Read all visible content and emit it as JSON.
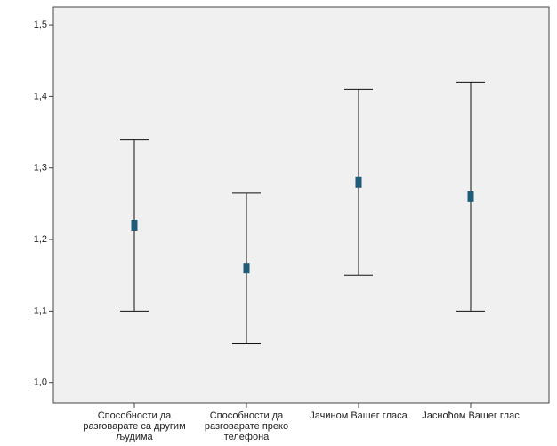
{
  "chart_data": {
    "type": "errorbar",
    "categories": [
      "Способности да разговарате са другим људима",
      "Способности да разговарате преко телефона",
      "Јачином Вашег гласа",
      "Јасноћом Вашег глас"
    ],
    "values": [
      1.22,
      1.16,
      1.28,
      1.26
    ],
    "errors": [
      0.12,
      0.105,
      0.13,
      0.16
    ],
    "color": "#1d5b78",
    "ylim": [
      0.971,
      1.525
    ],
    "yticks": [
      {
        "value": 1.0,
        "label": "1,0"
      },
      {
        "value": 1.1,
        "label": "1,1"
      },
      {
        "value": 1.2,
        "label": "1,2"
      },
      {
        "value": 1.3,
        "label": "1,3"
      },
      {
        "value": 1.4,
        "label": "1,4"
      },
      {
        "value": 1.5,
        "label": "1,5"
      }
    ]
  }
}
